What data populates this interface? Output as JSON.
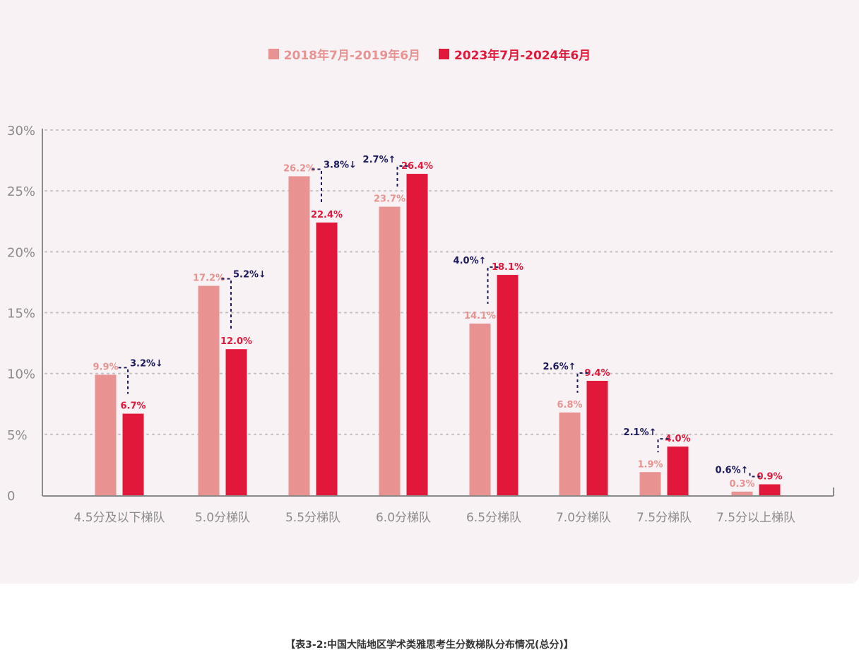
{
  "legend": {
    "series_a": "2018年7月-2019年6月",
    "series_b": "2023年7月-2024年6月"
  },
  "colors": {
    "series_a": "#e89391",
    "series_b": "#e2183a",
    "diff": "#1c1a5c",
    "axis": "#8a8a8a",
    "grid": "#c4c0c2",
    "panel": "#f9f2f5"
  },
  "caption": "【表3-2:中国大陆地区学术类雅思考生分数梯队分布情况(总分)】",
  "chart_data": {
    "type": "bar",
    "title": "中国大陆地区学术类雅思考生分数梯队分布情况(总分)",
    "xlabel": "",
    "ylabel": "",
    "ylim": [
      0,
      30
    ],
    "yticks": [
      "0",
      "5%",
      "10%",
      "15%",
      "20%",
      "25%",
      "30%"
    ],
    "grid": true,
    "legend_position": "top",
    "categories": [
      "4.5分及以下梯队",
      "5.0分梯队",
      "5.5分梯队",
      "6.0分梯队",
      "6.5分梯队",
      "7.0分梯队",
      "7.5分梯队",
      "7.5分以上梯队"
    ],
    "series": [
      {
        "name": "2018年7月-2019年6月",
        "values": [
          9.9,
          17.2,
          26.2,
          23.7,
          14.1,
          6.8,
          1.9,
          0.3
        ],
        "labels": [
          "9.9%",
          "17.2%",
          "26.2%",
          "23.7%",
          "14.1%",
          "6.8%",
          "1.9%",
          "0.3%"
        ]
      },
      {
        "name": "2023年7月-2024年6月",
        "values": [
          6.7,
          12.0,
          22.4,
          26.4,
          18.1,
          9.4,
          4.0,
          0.9
        ],
        "labels": [
          "6.7%",
          "12.0%",
          "22.4%",
          "26.4%",
          "18.1%",
          "9.4%",
          "4.0%",
          "0.9%"
        ]
      }
    ],
    "annotations": [
      {
        "category": "4.5分及以下梯队",
        "text": "3.2%↓",
        "direction": "down"
      },
      {
        "category": "5.0分梯队",
        "text": "5.2%↓",
        "direction": "down"
      },
      {
        "category": "5.5分梯队",
        "text": "3.8%↓",
        "direction": "down"
      },
      {
        "category": "6.0分梯队",
        "text": "2.7%↑",
        "direction": "up"
      },
      {
        "category": "6.5分梯队",
        "text": "4.0%↑",
        "direction": "up"
      },
      {
        "category": "7.0分梯队",
        "text": "2.6%↑",
        "direction": "up"
      },
      {
        "category": "7.5分梯队",
        "text": "2.1%↑",
        "direction": "up"
      },
      {
        "category": "7.5分以上梯队",
        "text": "0.6%↑",
        "direction": "up"
      }
    ]
  }
}
